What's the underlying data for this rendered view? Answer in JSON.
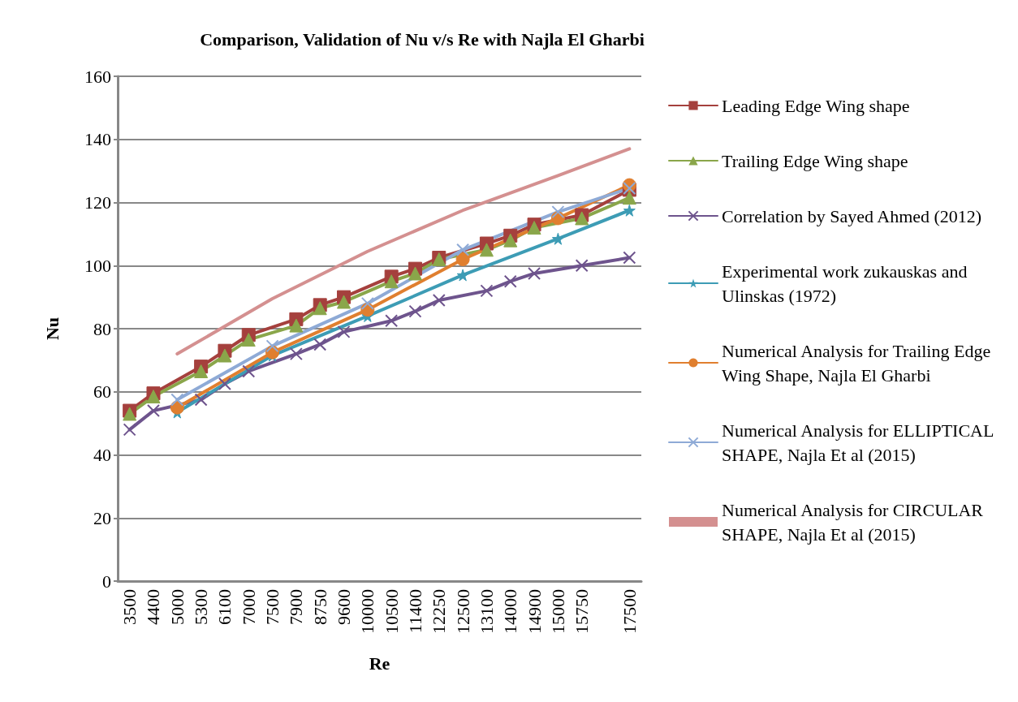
{
  "chart_data": {
    "type": "line",
    "title": "Comparison, Validation of Nu v/s Re with Najla El Gharbi",
    "xlabel": "Re",
    "ylabel": "Nu",
    "categories": [
      "3500",
      "4400",
      "5000",
      "5300",
      "6100",
      "7000",
      "7500",
      "7900",
      "8750",
      "9600",
      "10000",
      "10500",
      "11400",
      "12250",
      "12500",
      "13100",
      "14000",
      "14900",
      "15000",
      "15750",
      null,
      "17500"
    ],
    "ylim": [
      0,
      160
    ],
    "yticks": [
      0,
      20,
      40,
      60,
      80,
      100,
      120,
      140,
      160
    ],
    "grid": "y",
    "legend": "right",
    "line_style": "solid",
    "series": [
      {
        "name": "Leading Edge Wing shape",
        "color": "#a5403d",
        "marker": "square",
        "values": [
          54,
          59.5,
          null,
          68,
          73,
          78,
          null,
          83,
          87.5,
          90,
          null,
          96.5,
          99,
          102.5,
          null,
          107,
          109.5,
          113,
          null,
          116,
          null,
          124
        ]
      },
      {
        "name": "Trailing Edge Wing shape",
        "color": "#8aa64a",
        "marker": "triangle",
        "values": [
          53,
          58.5,
          null,
          66.5,
          71.5,
          76.5,
          null,
          81,
          86.5,
          88.5,
          null,
          95,
          97.5,
          102,
          null,
          105,
          108,
          112,
          null,
          115,
          null,
          121.5
        ]
      },
      {
        "name": "Correlation by Sayed Ahmed (2012)",
        "color": "#6e548d",
        "marker": "cross",
        "values": [
          48,
          54,
          null,
          57.5,
          62.5,
          66.5,
          null,
          72,
          75,
          79,
          null,
          82.5,
          85.5,
          89,
          null,
          92,
          95,
          97.5,
          null,
          100,
          null,
          102.5
        ]
      },
      {
        "name": "Experimental work zukauskas and Ulinskas (1972)",
        "color": "#3d9cb5",
        "marker": "star",
        "values": [
          null,
          null,
          53.5,
          null,
          null,
          null,
          71.5,
          null,
          null,
          null,
          84,
          null,
          null,
          null,
          97,
          null,
          null,
          null,
          108.5,
          null,
          null,
          117.5
        ]
      },
      {
        "name": "Numerical Analysis for Trailing Edge Wing Shape, Najla El Gharbi",
        "color": "#e07f2f",
        "marker": "circle",
        "values": [
          null,
          null,
          55,
          null,
          null,
          null,
          72.5,
          null,
          null,
          null,
          86,
          null,
          null,
          null,
          102,
          null,
          null,
          null,
          115,
          null,
          null,
          125.5
        ]
      },
      {
        "name": "Numerical Analysis for ELLIPTICAL SHAPE, Najla Et al (2015)",
        "color": "#8eaad6",
        "marker": "cross",
        "values": [
          null,
          null,
          57.5,
          null,
          null,
          null,
          74.5,
          null,
          null,
          null,
          88,
          null,
          null,
          null,
          105,
          null,
          null,
          null,
          117,
          null,
          null,
          124.5
        ]
      },
      {
        "name": "Numerical Analysis for CIRCULAR SHAPE, Najla Et al (2015)",
        "color": "#d49090",
        "marker": "none",
        "values": [
          null,
          null,
          72,
          null,
          null,
          null,
          89.5,
          null,
          null,
          null,
          104.5,
          null,
          null,
          null,
          117.5,
          null,
          null,
          null,
          128.5,
          null,
          null,
          137
        ]
      }
    ]
  }
}
